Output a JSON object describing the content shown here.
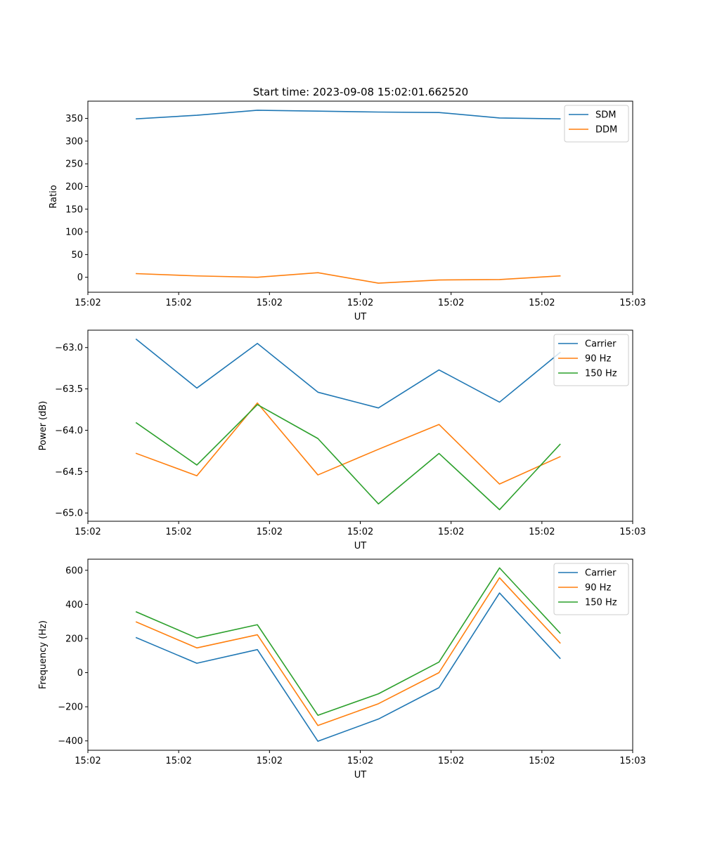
{
  "figure_title": "Start time: 2023-09-08 15:02:01.662520",
  "chart_data": [
    {
      "type": "line",
      "title": "Start time: 2023-09-08 15:02:01.662520",
      "xlabel": "UT",
      "ylabel": "Ratio",
      "x": [
        1,
        2,
        3,
        4,
        5,
        6,
        7,
        8
      ],
      "xlim": [
        0.2,
        9.2
      ],
      "x_ticks": [
        {
          "value": 0.2,
          "label": "15:02"
        },
        {
          "value": 1.7,
          "label": "15:02"
        },
        {
          "value": 3.2,
          "label": "15:02"
        },
        {
          "value": 4.7,
          "label": "15:02"
        },
        {
          "value": 6.2,
          "label": "15:02"
        },
        {
          "value": 7.7,
          "label": "15:02"
        },
        {
          "value": 9.2,
          "label": "15:03"
        }
      ],
      "ylim": [
        -33,
        388
      ],
      "y_ticks": [
        {
          "value": 350,
          "label": "350"
        },
        {
          "value": 300,
          "label": "300"
        },
        {
          "value": 250,
          "label": "250"
        },
        {
          "value": 200,
          "label": "200"
        },
        {
          "value": 150,
          "label": "150"
        },
        {
          "value": 100,
          "label": "100"
        },
        {
          "value": 50,
          "label": "50"
        },
        {
          "value": 0,
          "label": "0"
        }
      ],
      "legend_position": "top-right",
      "series": [
        {
          "name": "SDM",
          "color": "#1f77b4",
          "values": [
            349,
            357,
            368,
            366,
            364,
            363,
            351,
            349
          ]
        },
        {
          "name": "DDM",
          "color": "#ff7f0e",
          "values": [
            8,
            3,
            0,
            10,
            -13,
            -6,
            -5,
            3
          ]
        }
      ]
    },
    {
      "type": "line",
      "xlabel": "UT",
      "ylabel": "Power (dB)",
      "x": [
        1,
        2,
        3,
        4,
        5,
        6,
        7,
        8
      ],
      "xlim": [
        0.2,
        9.2
      ],
      "x_ticks": [
        {
          "value": 0.2,
          "label": "15:02"
        },
        {
          "value": 1.7,
          "label": "15:02"
        },
        {
          "value": 3.2,
          "label": "15:02"
        },
        {
          "value": 4.7,
          "label": "15:02"
        },
        {
          "value": 6.2,
          "label": "15:02"
        },
        {
          "value": 7.7,
          "label": "15:02"
        },
        {
          "value": 9.2,
          "label": "15:03"
        }
      ],
      "ylim": [
        -65.1,
        -62.79
      ],
      "y_ticks": [
        {
          "value": -63.0,
          "label": "−63.0"
        },
        {
          "value": -63.5,
          "label": "−63.5"
        },
        {
          "value": -64.0,
          "label": "−64.0"
        },
        {
          "value": -64.5,
          "label": "−64.5"
        },
        {
          "value": -65.0,
          "label": "−65.0"
        }
      ],
      "legend_position": "top-right",
      "series": [
        {
          "name": "Carrier",
          "color": "#1f77b4",
          "values": [
            -62.9,
            -63.49,
            -62.95,
            -63.54,
            -63.73,
            -63.27,
            -63.66,
            -63.06
          ]
        },
        {
          "name": "90 Hz",
          "color": "#ff7f0e",
          "values": [
            -64.28,
            -64.55,
            -63.67,
            -64.54,
            -64.23,
            -63.93,
            -64.65,
            -64.32
          ]
        },
        {
          "name": "150 Hz",
          "color": "#2ca02c",
          "values": [
            -63.91,
            -64.42,
            -63.69,
            -64.1,
            -64.89,
            -64.28,
            -64.96,
            -64.17
          ]
        }
      ]
    },
    {
      "type": "line",
      "xlabel": "UT",
      "ylabel": "Frequency (Hz)",
      "x": [
        1,
        2,
        3,
        4,
        5,
        6,
        7,
        8
      ],
      "xlim": [
        0.2,
        9.2
      ],
      "x_ticks": [
        {
          "value": 0.2,
          "label": "15:02"
        },
        {
          "value": 1.7,
          "label": "15:02"
        },
        {
          "value": 3.2,
          "label": "15:02"
        },
        {
          "value": 4.7,
          "label": "15:02"
        },
        {
          "value": 6.2,
          "label": "15:02"
        },
        {
          "value": 7.7,
          "label": "15:02"
        },
        {
          "value": 9.2,
          "label": "15:03"
        }
      ],
      "ylim": [
        -455,
        665
      ],
      "y_ticks": [
        {
          "value": 600,
          "label": "600"
        },
        {
          "value": 400,
          "label": "400"
        },
        {
          "value": 200,
          "label": "200"
        },
        {
          "value": 0,
          "label": "0"
        },
        {
          "value": -200,
          "label": "−200"
        },
        {
          "value": -400,
          "label": "−400"
        }
      ],
      "legend_position": "top-right",
      "series": [
        {
          "name": "Carrier",
          "color": "#1f77b4",
          "values": [
            205,
            55,
            135,
            -402,
            -272,
            -88,
            467,
            84
          ]
        },
        {
          "name": "90 Hz",
          "color": "#ff7f0e",
          "values": [
            297,
            145,
            222,
            -310,
            -182,
            0,
            556,
            174
          ]
        },
        {
          "name": "150 Hz",
          "color": "#2ca02c",
          "values": [
            356,
            203,
            281,
            -250,
            -124,
            62,
            614,
            232
          ]
        }
      ]
    }
  ]
}
